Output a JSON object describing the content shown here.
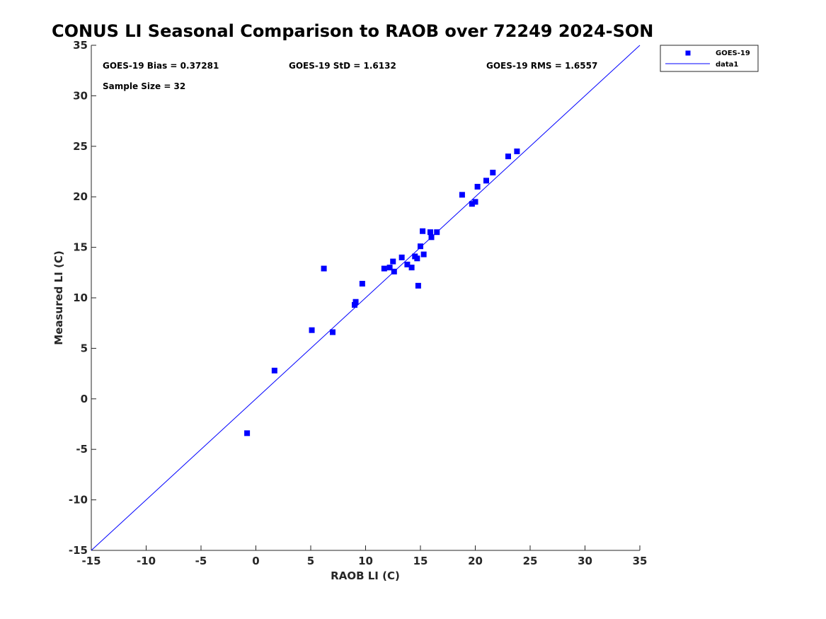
{
  "chart_data": {
    "type": "scatter",
    "title": "CONUS LI Seasonal Comparison to RAOB over 72249 2024-SON",
    "xlabel": "RAOB LI (C)",
    "ylabel": "Measured LI (C)",
    "xlim": [
      -15,
      35
    ],
    "ylim": [
      -15,
      35
    ],
    "xticks": [
      -15,
      -10,
      -5,
      0,
      5,
      10,
      15,
      20,
      25,
      30,
      35
    ],
    "yticks": [
      -15,
      -10,
      -5,
      0,
      5,
      10,
      15,
      20,
      25,
      30,
      35
    ],
    "grid": false,
    "legend_position": "outside top-right",
    "annotations": {
      "bias": "GOES-19 Bias = 0.37281",
      "std": "GOES-19 StD = 1.6132",
      "rms": "GOES-19 RMS = 1.6557",
      "sample": "Sample Size = 32"
    },
    "series": [
      {
        "name": "GOES-19",
        "kind": "scatter",
        "marker": "square",
        "color": "#0000ff",
        "points": [
          [
            -0.8,
            -3.4
          ],
          [
            1.7,
            2.8
          ],
          [
            5.1,
            6.8
          ],
          [
            6.2,
            12.9
          ],
          [
            7.0,
            6.6
          ],
          [
            9.0,
            9.3
          ],
          [
            9.1,
            9.6
          ],
          [
            9.7,
            11.4
          ],
          [
            11.7,
            12.9
          ],
          [
            12.2,
            13.0
          ],
          [
            12.5,
            13.6
          ],
          [
            12.6,
            12.6
          ],
          [
            13.3,
            14.0
          ],
          [
            13.8,
            13.3
          ],
          [
            14.2,
            13.0
          ],
          [
            14.5,
            14.1
          ],
          [
            14.7,
            13.9
          ],
          [
            14.8,
            11.2
          ],
          [
            15.0,
            15.1
          ],
          [
            15.2,
            16.6
          ],
          [
            15.3,
            14.3
          ],
          [
            15.9,
            16.5
          ],
          [
            16.0,
            16.0
          ],
          [
            16.5,
            16.5
          ],
          [
            18.8,
            20.2
          ],
          [
            19.7,
            19.3
          ],
          [
            20.0,
            19.5
          ],
          [
            20.2,
            21.0
          ],
          [
            21.0,
            21.6
          ],
          [
            21.6,
            22.4
          ],
          [
            23.0,
            24.0
          ],
          [
            23.8,
            24.5
          ]
        ]
      },
      {
        "name": "data1",
        "kind": "line",
        "color": "#0000ff",
        "points": [
          [
            -15,
            -15
          ],
          [
            35,
            35
          ]
        ]
      }
    ]
  }
}
